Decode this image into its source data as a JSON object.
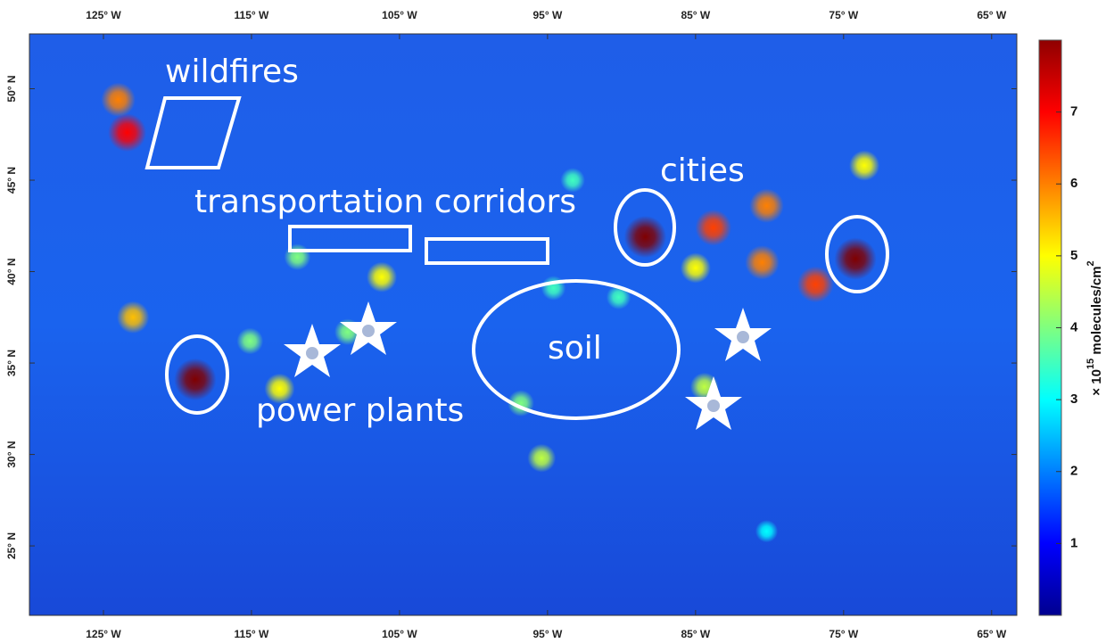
{
  "map": {
    "xlim": [
      -130,
      -63.3
    ],
    "ylim": [
      21.2,
      53
    ],
    "xticks": [
      {
        "value": -125,
        "label": "125° W"
      },
      {
        "value": -115,
        "label": "115° W"
      },
      {
        "value": -105,
        "label": "105° W"
      },
      {
        "value": -95,
        "label": "95° W"
      },
      {
        "value": -85,
        "label": "85° W"
      },
      {
        "value": -75,
        "label": "75° W"
      },
      {
        "value": -65,
        "label": "65° W"
      }
    ],
    "yticks": [
      {
        "value": 25,
        "label": "25° N"
      },
      {
        "value": 30,
        "label": "30° N"
      },
      {
        "value": 35,
        "label": "35° N"
      },
      {
        "value": 40,
        "label": "40° N"
      },
      {
        "value": 45,
        "label": "45° N"
      },
      {
        "value": 50,
        "label": "50° N"
      }
    ],
    "colorbar": {
      "clim": [
        0,
        8
      ],
      "ticks": [
        1,
        2,
        3,
        4,
        5,
        6,
        7
      ],
      "colormap": "jet",
      "label": {
        "prefix": "× 10",
        "exp": "15",
        "unit": " molecules/cm",
        "unit_exp": "2"
      }
    },
    "hotspots": {
      "lon": [
        -118.8,
        -123.4,
        -124,
        -88.4,
        -74.2,
        -83.8,
        -80.5,
        -80.2,
        -85,
        -76.9,
        -123,
        -113.1,
        -106.2,
        -95.4,
        -96.8,
        -84.4,
        -108.5,
        -111.9,
        -73.6,
        -80.2,
        -115.1,
        -93.3,
        -90.2,
        -94.6
      ],
      "lat": [
        34.1,
        47.6,
        49.4,
        41.9,
        40.7,
        42.4,
        40.5,
        43.6,
        40.2,
        39.3,
        37.5,
        33.6,
        39.7,
        29.8,
        32.8,
        33.7,
        36.7,
        40.8,
        45.8,
        25.8,
        36.2,
        45,
        38.6,
        39.1
      ],
      "values": [
        8,
        7,
        6,
        8,
        8,
        6.5,
        6,
        6,
        5,
        6.5,
        5.5,
        5,
        5,
        4.5,
        4,
        4.5,
        4,
        4,
        5,
        3,
        4,
        3.5,
        3.5,
        3.5
      ]
    },
    "annotations": {
      "wildfires": "wildfires",
      "transportation": "transportation corridors",
      "cities": "cities",
      "soil": "soil",
      "power_plants": "power plants"
    }
  }
}
